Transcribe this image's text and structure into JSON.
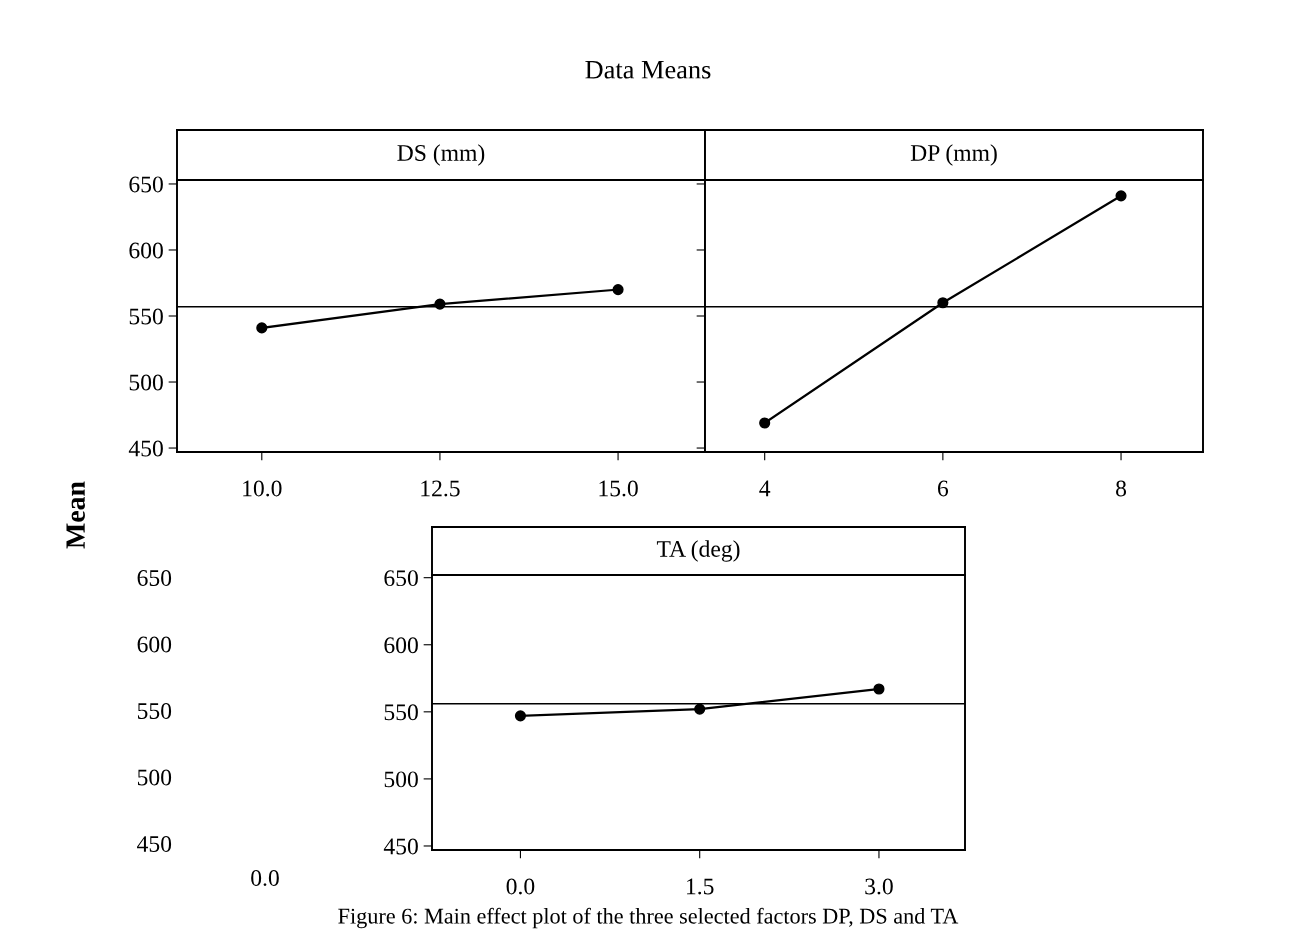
{
  "chart_data": [
    {
      "type": "line",
      "title": "DS (mm)",
      "ylabel": "Mean",
      "annotations": [
        "Data Means",
        "Figure 6: Main effect plot of the three selected factors DP, DS and TA",
        "650",
        "600",
        "550",
        "500",
        "450",
        "0.0"
      ],
      "x": [
        10.0,
        12.5,
        15.0
      ],
      "series": [
        {
          "color": "#000000",
          "values": [
            541,
            559,
            570
          ]
        }
      ],
      "xlim": [
        8.81,
        16.22
      ],
      "xticks": [
        {
          "value": 10,
          "label": "10.0"
        },
        {
          "value": 12.5,
          "label": "12.5"
        },
        {
          "value": 15,
          "label": "15.0"
        }
      ],
      "ylim": [
        447,
        653
      ],
      "yticks": [
        450,
        500,
        550,
        600,
        650
      ],
      "ref_lines": [
        {
          "axis": "y",
          "value": 557,
          "color": "#000000"
        }
      ],
      "marker": "circle",
      "grid": false
    },
    {
      "type": "line",
      "title": "DP (mm)",
      "tick_labels": "x",
      "x": [
        4,
        6,
        8
      ],
      "series": [
        {
          "color": "#000000",
          "values": [
            469,
            560,
            641
          ]
        }
      ],
      "xlim": [
        3.33,
        8.92
      ],
      "xticks": [
        4,
        6,
        8
      ],
      "ylim": [
        447,
        653
      ],
      "yticks": [
        450,
        500,
        550,
        600,
        650
      ],
      "ref_lines": [
        {
          "axis": "y",
          "value": 557,
          "color": "#000000"
        }
      ],
      "marker": "circle",
      "grid": false
    },
    {
      "type": "line",
      "title": "TA (deg)",
      "x": [
        0.0,
        1.5,
        3.0
      ],
      "series": [
        {
          "color": "#000000",
          "values": [
            547,
            552,
            567
          ]
        }
      ],
      "xlim": [
        -0.74,
        3.72
      ],
      "xticks": [
        {
          "value": 0,
          "label": "0.0"
        },
        {
          "value": 1.5,
          "label": "1.5"
        },
        {
          "value": 3,
          "label": "3.0"
        }
      ],
      "ylim": [
        447,
        652
      ],
      "yticks": [
        450,
        500,
        550,
        600,
        650
      ],
      "ref_lines": [
        {
          "axis": "y",
          "value": 556,
          "color": "#000000"
        }
      ],
      "marker": "circle",
      "grid": false
    }
  ]
}
